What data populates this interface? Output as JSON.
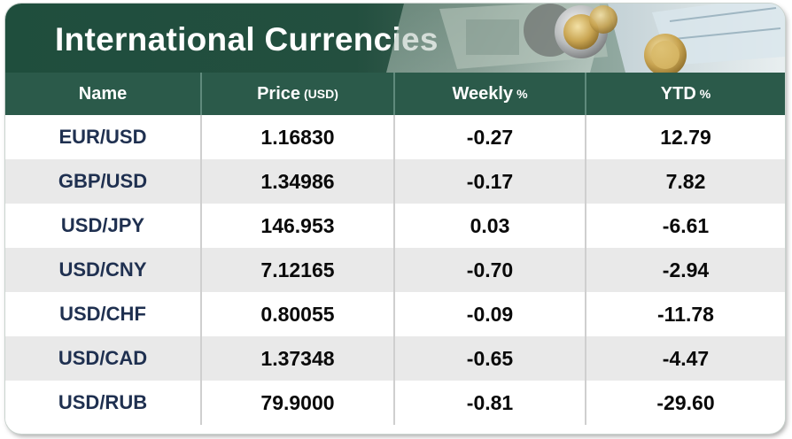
{
  "title": "International Currencies",
  "columns": [
    {
      "label": "Name",
      "unit": ""
    },
    {
      "label": "Price",
      "unit": "(USD)"
    },
    {
      "label": "Weekly",
      "unit": "%"
    },
    {
      "label": "YTD",
      "unit": "%"
    }
  ],
  "rows": [
    {
      "name": "EUR/USD",
      "price": "1.16830",
      "weekly": "-0.27",
      "ytd": "12.79"
    },
    {
      "name": "GBP/USD",
      "price": "1.34986",
      "weekly": "-0.17",
      "ytd": "7.82"
    },
    {
      "name": "USD/JPY",
      "price": "146.953",
      "weekly": "0.03",
      "ytd": "-6.61"
    },
    {
      "name": "USD/CNY",
      "price": "7.12165",
      "weekly": "-0.70",
      "ytd": "-2.94"
    },
    {
      "name": "USD/CHF",
      "price": "0.80055",
      "weekly": "-0.09",
      "ytd": "-11.78"
    },
    {
      "name": "USD/CAD",
      "price": "1.37348",
      "weekly": "-0.65",
      "ytd": "-4.47"
    },
    {
      "name": "USD/RUB",
      "price": "79.9000",
      "weekly": "-0.81",
      "ytd": "-29.60"
    }
  ],
  "colors": {
    "banner": "#1f4e3d",
    "header": "#2b5a4a",
    "alt_row": "#e9e9e9",
    "name_text": "#1f3050"
  }
}
